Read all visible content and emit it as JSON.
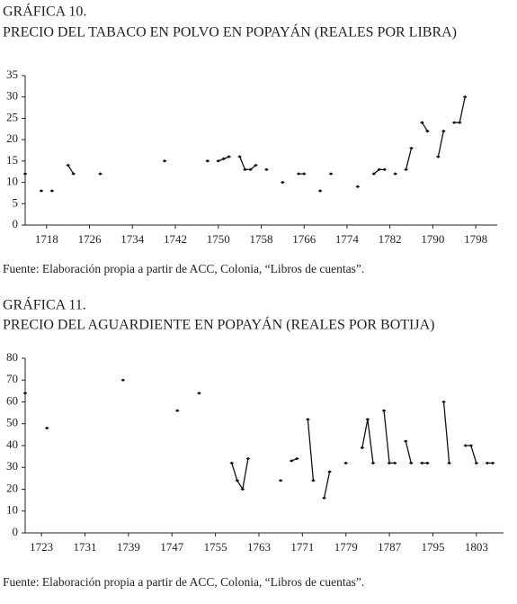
{
  "chart_data": [
    {
      "type": "line",
      "title": "GRÁFICA 10.",
      "subtitle": "PRECIO DEL TABACO EN POLVO EN POPAYÁN (REALES POR LIBRA)",
      "source": "Fuente: Elaboración propia a partir de ACC, Colonia, “Libros de cuentas”.",
      "color": "#111111",
      "x": [
        1714,
        1715,
        1717,
        1718,
        1719,
        1720,
        1722,
        1723,
        1724,
        1728,
        1729,
        1740,
        1741,
        1748,
        1749,
        1750,
        1751,
        1752,
        1753,
        1754,
        1755,
        1756,
        1757,
        1758,
        1759,
        1760,
        1762,
        1763,
        1765,
        1766,
        1767,
        1769,
        1770,
        1771,
        1772,
        1776,
        1777,
        1779,
        1780,
        1781,
        1782,
        1783,
        1784,
        1785,
        1786,
        1787,
        1788,
        1789,
        1790,
        1791,
        1792,
        1793,
        1794,
        1795,
        1796
      ],
      "values": [
        12,
        null,
        8,
        null,
        8,
        null,
        14,
        12,
        null,
        12,
        null,
        15,
        null,
        15,
        null,
        15,
        15.5,
        16,
        null,
        16,
        13,
        13,
        14,
        null,
        13,
        null,
        10,
        null,
        12,
        12,
        null,
        8,
        null,
        12,
        null,
        9,
        null,
        12,
        13,
        13,
        null,
        12,
        null,
        13,
        18,
        null,
        24,
        22,
        null,
        16,
        22,
        null,
        24,
        24,
        30
      ],
      "xlim": [
        1714,
        1801
      ],
      "xticks": [
        1718,
        1726,
        1734,
        1742,
        1750,
        1758,
        1766,
        1774,
        1782,
        1790,
        1798
      ],
      "ylim": [
        0,
        35
      ],
      "yticks": [
        0,
        5,
        10,
        15,
        20,
        25,
        30,
        35
      ]
    },
    {
      "type": "line",
      "title": "GRÁFICA 11.",
      "subtitle": "PRECIO DEL AGUARDIENTE EN POPAYÁN (REALES POR BOTIJA)",
      "source": "Fuente: Elaboración propia a partir de ACC, Colonia, “Libros de cuentas”.",
      "color": "#111111",
      "x": [
        1720,
        1721,
        1724,
        1725,
        1738,
        1739,
        1748,
        1749,
        1752,
        1753,
        1758,
        1759,
        1760,
        1761,
        1762,
        1767,
        1768,
        1769,
        1770,
        1771,
        1772,
        1773,
        1774,
        1775,
        1776,
        1777,
        1779,
        1780,
        1782,
        1783,
        1784,
        1785,
        1786,
        1787,
        1788,
        1789,
        1790,
        1791,
        1792,
        1793,
        1794,
        1795,
        1797,
        1798,
        1799,
        1801,
        1802,
        1803,
        1804,
        1805,
        1806
      ],
      "values": [
        64,
        null,
        48,
        null,
        70,
        null,
        56,
        null,
        64,
        null,
        32,
        24,
        20,
        34,
        null,
        24,
        null,
        33,
        34,
        null,
        52,
        24,
        null,
        16,
        28,
        null,
        32,
        null,
        39,
        52,
        32,
        null,
        56,
        32,
        32,
        null,
        42,
        32,
        null,
        32,
        32,
        null,
        60,
        32,
        null,
        40,
        40,
        32,
        null,
        32,
        32
      ],
      "xlim": [
        1720,
        1807
      ],
      "xticks": [
        1723,
        1731,
        1739,
        1747,
        1755,
        1763,
        1771,
        1779,
        1787,
        1795,
        1803
      ],
      "ylim": [
        0,
        80
      ],
      "yticks": [
        0,
        10,
        20,
        30,
        40,
        50,
        60,
        70,
        80
      ]
    }
  ]
}
